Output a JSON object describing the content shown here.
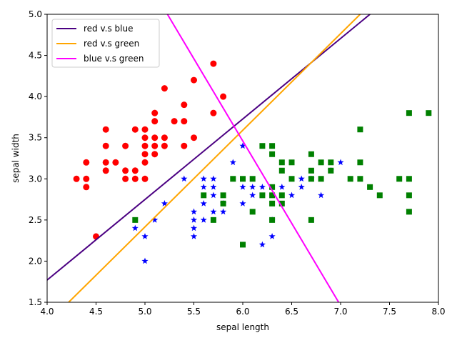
{
  "chart_data": {
    "type": "scatter",
    "xlabel": "sepal length",
    "ylabel": "sepal width",
    "xlim": [
      4.0,
      8.0
    ],
    "ylim": [
      1.5,
      5.0
    ],
    "x_ticks": [
      "4.0",
      "4.5",
      "5.0",
      "5.5",
      "6.0",
      "6.5",
      "7.0",
      "7.5",
      "8.0"
    ],
    "y_ticks": [
      "1.5",
      "2.0",
      "2.5",
      "3.0",
      "3.5",
      "4.0",
      "4.5",
      "5.0"
    ],
    "legend_position": "top-left",
    "series": [
      {
        "marker": "circle",
        "color": "#ff0000",
        "points": [
          [
            4.3,
            3.0
          ],
          [
            4.4,
            3.2
          ],
          [
            4.4,
            3.0
          ],
          [
            4.4,
            2.9
          ],
          [
            4.5,
            2.3
          ],
          [
            4.6,
            3.6
          ],
          [
            4.6,
            3.4
          ],
          [
            4.6,
            3.2
          ],
          [
            4.6,
            3.1
          ],
          [
            4.7,
            3.2
          ],
          [
            4.8,
            3.4
          ],
          [
            4.8,
            3.1
          ],
          [
            4.8,
            3.0
          ],
          [
            4.9,
            3.6
          ],
          [
            4.9,
            3.1
          ],
          [
            4.9,
            3.0
          ],
          [
            5.0,
            3.6
          ],
          [
            5.0,
            3.5
          ],
          [
            5.0,
            3.4
          ],
          [
            5.0,
            3.3
          ],
          [
            5.0,
            3.2
          ],
          [
            5.0,
            3.0
          ],
          [
            5.1,
            3.8
          ],
          [
            5.1,
            3.7
          ],
          [
            5.1,
            3.5
          ],
          [
            5.1,
            3.4
          ],
          [
            5.1,
            3.3
          ],
          [
            5.2,
            4.1
          ],
          [
            5.2,
            3.5
          ],
          [
            5.2,
            3.4
          ],
          [
            5.3,
            3.7
          ],
          [
            5.4,
            3.9
          ],
          [
            5.4,
            3.7
          ],
          [
            5.4,
            3.4
          ],
          [
            5.5,
            4.2
          ],
          [
            5.5,
            3.5
          ],
          [
            5.7,
            4.4
          ],
          [
            5.7,
            3.8
          ],
          [
            5.8,
            4.0
          ]
        ]
      },
      {
        "marker": "star",
        "color": "#0000ff",
        "points": [
          [
            4.9,
            2.4
          ],
          [
            5.0,
            2.3
          ],
          [
            5.0,
            2.0
          ],
          [
            5.1,
            2.5
          ],
          [
            5.2,
            2.7
          ],
          [
            5.4,
            3.0
          ],
          [
            5.5,
            2.6
          ],
          [
            5.5,
            2.5
          ],
          [
            5.5,
            2.4
          ],
          [
            5.5,
            2.3
          ],
          [
            5.6,
            3.0
          ],
          [
            5.6,
            2.9
          ],
          [
            5.6,
            2.7
          ],
          [
            5.6,
            2.5
          ],
          [
            5.7,
            3.0
          ],
          [
            5.7,
            2.9
          ],
          [
            5.7,
            2.8
          ],
          [
            5.7,
            2.6
          ],
          [
            5.8,
            2.7
          ],
          [
            5.8,
            2.6
          ],
          [
            5.9,
            3.2
          ],
          [
            6.0,
            3.4
          ],
          [
            6.0,
            2.9
          ],
          [
            6.0,
            2.7
          ],
          [
            6.1,
            2.9
          ],
          [
            6.1,
            2.8
          ],
          [
            6.2,
            2.9
          ],
          [
            6.2,
            2.2
          ],
          [
            6.3,
            2.5
          ],
          [
            6.3,
            2.3
          ],
          [
            6.4,
            2.9
          ],
          [
            6.5,
            2.8
          ],
          [
            6.6,
            3.0
          ],
          [
            6.6,
            2.9
          ],
          [
            6.7,
            3.0
          ],
          [
            6.8,
            2.8
          ],
          [
            6.9,
            3.1
          ],
          [
            7.0,
            3.2
          ]
        ]
      },
      {
        "marker": "square",
        "color": "#008000",
        "points": [
          [
            4.9,
            2.5
          ],
          [
            5.6,
            2.8
          ],
          [
            5.7,
            2.5
          ],
          [
            5.8,
            2.8
          ],
          [
            5.8,
            2.7
          ],
          [
            5.9,
            3.0
          ],
          [
            6.0,
            3.0
          ],
          [
            6.0,
            2.2
          ],
          [
            6.1,
            3.0
          ],
          [
            6.1,
            2.6
          ],
          [
            6.2,
            3.4
          ],
          [
            6.2,
            2.8
          ],
          [
            6.3,
            3.4
          ],
          [
            6.3,
            3.3
          ],
          [
            6.3,
            2.9
          ],
          [
            6.3,
            2.8
          ],
          [
            6.3,
            2.7
          ],
          [
            6.3,
            2.5
          ],
          [
            6.4,
            3.2
          ],
          [
            6.4,
            3.1
          ],
          [
            6.4,
            2.8
          ],
          [
            6.4,
            2.7
          ],
          [
            6.5,
            3.2
          ],
          [
            6.5,
            3.0
          ],
          [
            6.7,
            3.3
          ],
          [
            6.7,
            3.1
          ],
          [
            6.7,
            3.0
          ],
          [
            6.7,
            2.5
          ],
          [
            6.8,
            3.2
          ],
          [
            6.8,
            3.0
          ],
          [
            6.9,
            3.2
          ],
          [
            6.9,
            3.1
          ],
          [
            7.1,
            3.0
          ],
          [
            7.2,
            3.6
          ],
          [
            7.2,
            3.2
          ],
          [
            7.2,
            3.0
          ],
          [
            7.3,
            2.9
          ],
          [
            7.4,
            2.8
          ],
          [
            7.6,
            3.0
          ],
          [
            7.7,
            3.8
          ],
          [
            7.7,
            3.0
          ],
          [
            7.7,
            2.8
          ],
          [
            7.7,
            2.6
          ],
          [
            7.9,
            3.8
          ]
        ]
      }
    ],
    "lines": [
      {
        "name": "red v.s blue",
        "color": "#4b0082",
        "points": [
          [
            4.0,
            1.77
          ],
          [
            7.3,
            5.0
          ]
        ]
      },
      {
        "name": "red v.s green",
        "color": "#ffa500",
        "points": [
          [
            4.22,
            1.5
          ],
          [
            7.2,
            5.0
          ]
        ]
      },
      {
        "name": "blue v.s green",
        "color": "#ff00ff",
        "points": [
          [
            5.23,
            5.0
          ],
          [
            6.98,
            1.5
          ]
        ]
      }
    ]
  }
}
